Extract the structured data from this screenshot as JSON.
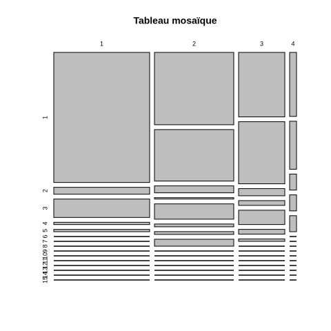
{
  "chart_data": {
    "type": "mosaic",
    "title": "Tableau mosaïque",
    "columns": [
      "1",
      "2",
      "3",
      "4"
    ],
    "rows": [
      "1",
      "2",
      "3",
      "4",
      "5",
      "6",
      "7",
      "8",
      "9",
      "10",
      "11",
      "12",
      "13",
      "14",
      "15"
    ],
    "values": [
      [
        113,
        6,
        16,
        2,
        2,
        0,
        0,
        0,
        0,
        0,
        0,
        0,
        0,
        0,
        0
      ],
      [
        52,
        37,
        5,
        1,
        11,
        2,
        2,
        5,
        0,
        0,
        0,
        0,
        0,
        0,
        0
      ],
      [
        27,
        26,
        3,
        2,
        6,
        2,
        1,
        0,
        0,
        0,
        0,
        0,
        0,
        0,
        0
      ],
      [
        4,
        3,
        1,
        1,
        1,
        0,
        0,
        0,
        0,
        0,
        0,
        0,
        0,
        0,
        0
      ]
    ],
    "color": "#bebebe"
  }
}
